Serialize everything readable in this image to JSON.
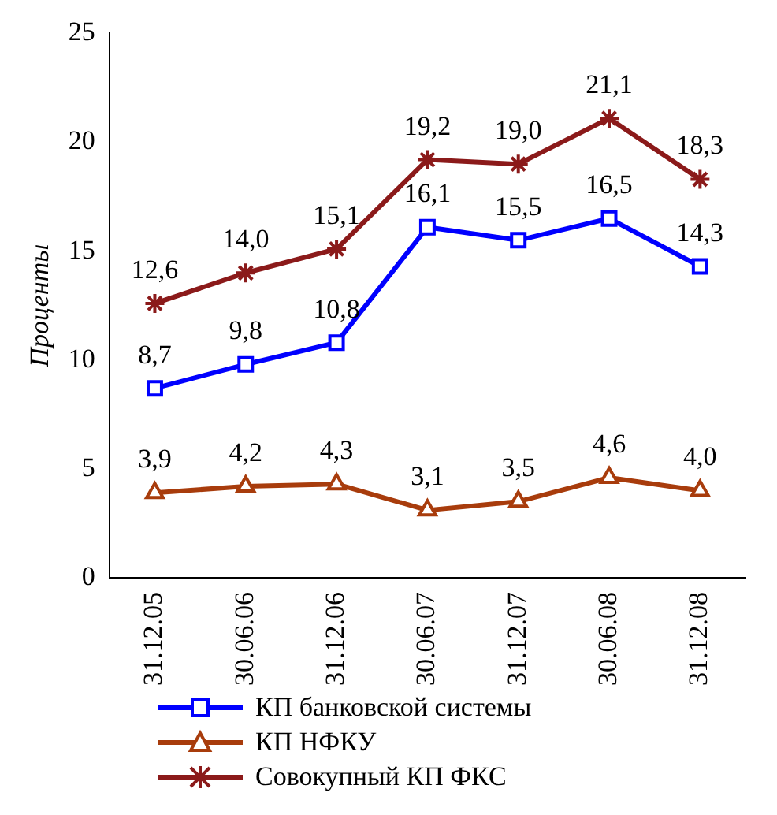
{
  "chart_data": {
    "type": "line",
    "ylabel": "Проценты",
    "categories": [
      "31.12.05",
      "30.06.06",
      "31.12.06",
      "30.06.07",
      "31.12.07",
      "30.06.08",
      "31.12.08"
    ],
    "series": [
      {
        "name": "КП банковской системы",
        "color": "#0000ff",
        "marker": "square",
        "values": [
          8.7,
          9.8,
          10.8,
          16.1,
          15.5,
          16.5,
          14.3
        ],
        "value_labels": [
          "8,7",
          "9,8",
          "10,8",
          "16,1",
          "15,5",
          "16,5",
          "14,3"
        ]
      },
      {
        "name": "КП НФКУ",
        "color": "#a83c0c",
        "marker": "triangle",
        "values": [
          3.9,
          4.2,
          4.3,
          3.1,
          3.5,
          4.6,
          4.0
        ],
        "value_labels": [
          "3,9",
          "4,2",
          "4,3",
          "3,1",
          "3,5",
          "4,6",
          "4,0"
        ]
      },
      {
        "name": "Совокупный КП ФКС",
        "color": "#8b1a1a",
        "marker": "cross",
        "values": [
          12.6,
          14.0,
          15.1,
          19.2,
          19.0,
          21.1,
          18.3
        ],
        "value_labels": [
          "12,6",
          "14,0",
          "15,1",
          "19,2",
          "19,0",
          "21,1",
          "18,3"
        ]
      }
    ],
    "ylim": [
      0,
      25
    ],
    "yticks": [
      0,
      5,
      10,
      15,
      20,
      25
    ],
    "grid": false,
    "legend": "bottom"
  }
}
